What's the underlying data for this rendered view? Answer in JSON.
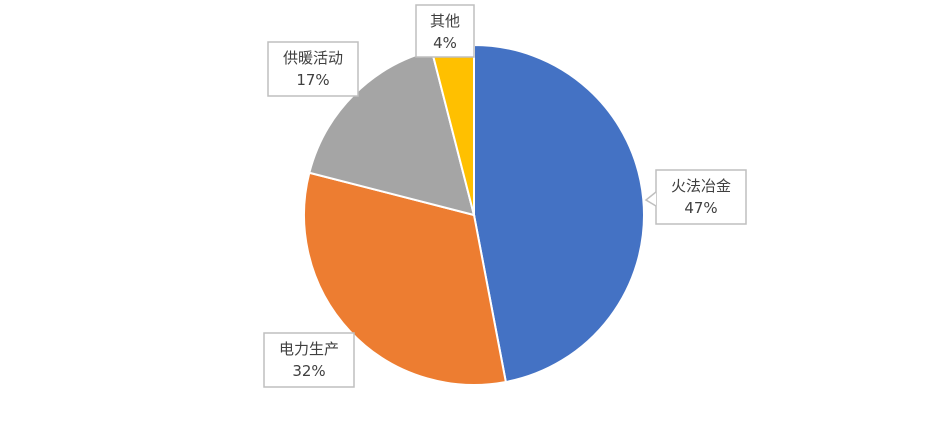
{
  "chart_data": {
    "type": "pie",
    "title": "",
    "start_angle_deg": 0,
    "direction": "clockwise",
    "slices": [
      {
        "name": "火法冶金",
        "value": 47,
        "label": "47%",
        "color": "#4472C4"
      },
      {
        "name": "电力生产",
        "value": 32,
        "label": "32%",
        "color": "#ED7D31"
      },
      {
        "name": "供暖活动",
        "value": 17,
        "label": "17%",
        "color": "#A5A5A5"
      },
      {
        "name": "其他",
        "value": 4,
        "label": "4%",
        "color": "#FFC000"
      }
    ],
    "legend": "none",
    "data_labels": "category-and-percent-callouts"
  }
}
